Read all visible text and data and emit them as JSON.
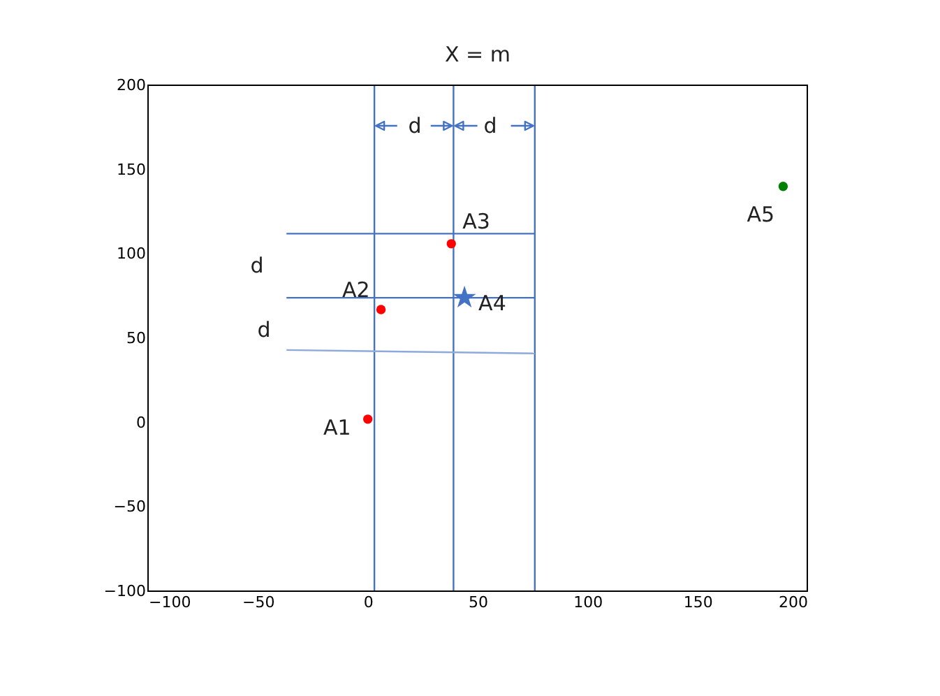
{
  "chart_data": {
    "type": "scatter",
    "title": "X = m",
    "xlim": [
      -100,
      200
    ],
    "xticks": [
      -100,
      -50,
      0,
      50,
      100,
      150,
      200
    ],
    "ylim": [
      -100,
      200
    ],
    "yticks": [
      -100,
      -50,
      0,
      50,
      100,
      150,
      200
    ],
    "grid": false,
    "series": [
      {
        "type": "line",
        "x": [
          3,
          3
        ],
        "values": [
          -100,
          200
        ],
        "color": "#4472c4",
        "line_style": "solid",
        "marker": "none"
      },
      {
        "type": "line",
        "x": [
          39,
          39
        ],
        "values": [
          -100,
          200
        ],
        "color": "#4472c4",
        "line_style": "solid",
        "marker": "none"
      },
      {
        "type": "line",
        "x": [
          76,
          76
        ],
        "values": [
          -100,
          200
        ],
        "color": "#4472c4",
        "line_style": "solid",
        "marker": "none"
      },
      {
        "type": "line",
        "x": [
          -37,
          76
        ],
        "values": [
          112,
          112
        ],
        "color": "#4472c4",
        "line_style": "solid",
        "marker": "none"
      },
      {
        "type": "line",
        "x": [
          -37,
          76
        ],
        "values": [
          74,
          74
        ],
        "color": "#4472c4",
        "line_style": "solid",
        "marker": "none"
      },
      {
        "type": "line",
        "x": [
          -37,
          76
        ],
        "values": [
          43,
          41
        ],
        "color": "#8eaadb",
        "line_style": "solid",
        "marker": "none"
      },
      {
        "type": "scatter",
        "name": "A1",
        "x": [
          0
        ],
        "values": [
          2
        ],
        "color": "#ff0000",
        "marker": "circle"
      },
      {
        "type": "scatter",
        "name": "A2",
        "x": [
          6
        ],
        "values": [
          67
        ],
        "color": "#ff0000",
        "marker": "circle"
      },
      {
        "type": "scatter",
        "name": "A3",
        "x": [
          38
        ],
        "values": [
          106
        ],
        "color": "#ff0000",
        "marker": "circle"
      },
      {
        "type": "scatter",
        "name": "A4",
        "x": [
          44
        ],
        "values": [
          74
        ],
        "color": "#4472c4",
        "marker": "star"
      },
      {
        "type": "scatter",
        "name": "A5",
        "x": [
          189
        ],
        "values": [
          140
        ],
        "color": "#008000",
        "marker": "circle"
      }
    ],
    "annotations": [
      "d",
      "d",
      "d",
      "d"
    ]
  }
}
